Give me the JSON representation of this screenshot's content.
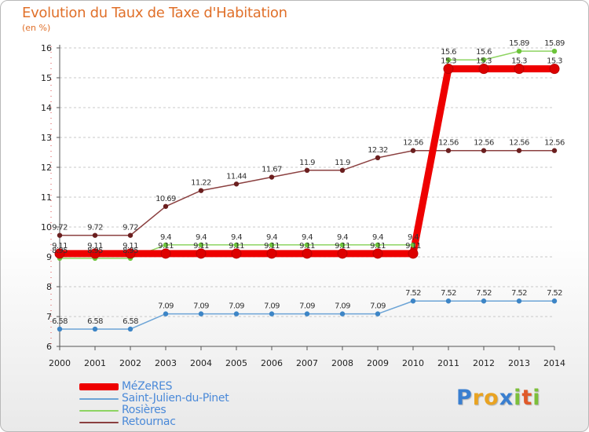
{
  "header": {
    "title": "Evolution du Taux de Taxe d'Habitation",
    "subtitle": "(en %)"
  },
  "colors": {
    "title": "#e0702a",
    "grid": "#c8c8c8",
    "axis": "#555555",
    "legend_text": "#4a89d8"
  },
  "logo": {
    "text": "Proxiti",
    "letters": [
      {
        "ch": "P",
        "color": "#3a7fd0"
      },
      {
        "ch": "r",
        "color": "#e9a321"
      },
      {
        "ch": "o",
        "color": "#e9a321"
      },
      {
        "ch": "x",
        "color": "#3a7fd0"
      },
      {
        "ch": "i",
        "color": "#7cbf3a"
      },
      {
        "ch": "t",
        "color": "#e05a2a"
      },
      {
        "ch": "i",
        "color": "#7cbf3a"
      }
    ]
  },
  "chart_data": {
    "type": "line",
    "title": "Evolution du Taux de Taxe d'Habitation",
    "subtitle": "(en %)",
    "xlabel": "",
    "ylabel": "",
    "x": [
      2000,
      2001,
      2002,
      2003,
      2004,
      2005,
      2006,
      2007,
      2008,
      2009,
      2010,
      2011,
      2012,
      2013,
      2014
    ],
    "ylim": [
      6,
      16
    ],
    "yticks": [
      6,
      7,
      8,
      9,
      10,
      11,
      12,
      13,
      14,
      15,
      16
    ],
    "grid": "horizontal dashed",
    "legend_position": "bottom-left",
    "series": [
      {
        "name": "MéZeRES",
        "color": "#ee0000",
        "marker_color": "#dd0000",
        "emphasis": "thick",
        "values": [
          9.11,
          9.11,
          9.11,
          9.11,
          9.11,
          9.11,
          9.11,
          9.11,
          9.11,
          9.11,
          9.11,
          15.3,
          15.3,
          15.3,
          15.3
        ],
        "labels": [
          "9.11",
          "9.11",
          "9.11",
          "9.11",
          "9.11",
          "9.11",
          "9.11",
          "9.11",
          "9.11",
          "9.11",
          "9.11",
          "15.3",
          "15.3",
          "15.3",
          "15.3"
        ]
      },
      {
        "name": "Saint-Julien-du-Pinet",
        "color": "#6ca4d6",
        "marker_color": "#3d85c6",
        "emphasis": "normal",
        "values": [
          6.58,
          6.58,
          6.58,
          7.09,
          7.09,
          7.09,
          7.09,
          7.09,
          7.09,
          7.09,
          7.52,
          7.52,
          7.52,
          7.52,
          7.52
        ],
        "labels": [
          "6.58",
          "6.58",
          "6.58",
          "7.09",
          "7.09",
          "7.09",
          "7.09",
          "7.09",
          "7.09",
          "7.09",
          "7.52",
          "7.52",
          "7.52",
          "7.52",
          "7.52"
        ]
      },
      {
        "name": "Rosières",
        "color": "#8ed462",
        "marker_color": "#6cc43a",
        "emphasis": "normal",
        "values": [
          8.95,
          8.95,
          8.95,
          9.4,
          9.4,
          9.4,
          9.4,
          9.4,
          9.4,
          9.4,
          9.4,
          15.6,
          15.6,
          15.89,
          15.89
        ],
        "labels": [
          "8.95",
          "8.95",
          "8.95",
          "9.4",
          "9.4",
          "9.4",
          "9.4",
          "9.4",
          "9.4",
          "9.4",
          "9.4",
          "15.6",
          "15.6",
          "15.89",
          "15.89"
        ]
      },
      {
        "name": "Retournac",
        "color": "#8b4040",
        "marker_color": "#6b1f1f",
        "emphasis": "normal",
        "values": [
          9.72,
          9.72,
          9.72,
          10.69,
          11.22,
          11.44,
          11.67,
          11.9,
          11.9,
          12.32,
          12.56,
          12.56,
          12.56,
          12.56,
          12.56
        ],
        "labels": [
          "9.72",
          "9.72",
          "9.72",
          "10.69",
          "11.22",
          "11.44",
          "11.67",
          "11.9",
          "11.9",
          "12.32",
          "12.56",
          "12.56",
          "12.56",
          "12.56",
          "12.56"
        ]
      }
    ]
  }
}
